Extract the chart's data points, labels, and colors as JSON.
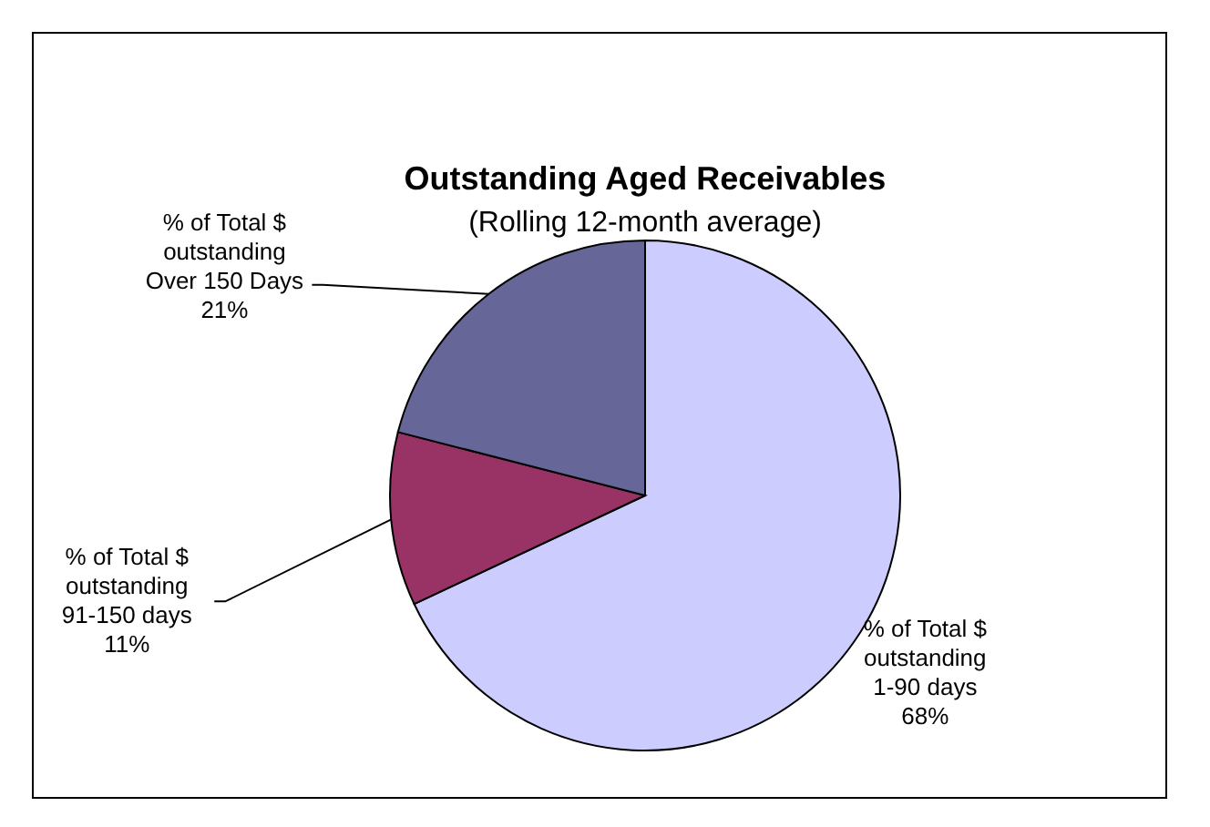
{
  "chart_data": {
    "type": "pie",
    "title": "Outstanding Aged Receivables",
    "subtitle": "(Rolling 12-month average)",
    "categories": [
      "% of Total $ outstanding 1-90 days",
      "% of Total $ outstanding 91-150 days",
      "% of Total $ outstanding Over 150 Days"
    ],
    "values": [
      68,
      11,
      21
    ],
    "colors": [
      "#ccccff",
      "#993366",
      "#666699"
    ],
    "value_labels": [
      "68%",
      "11%",
      "21%"
    ]
  }
}
